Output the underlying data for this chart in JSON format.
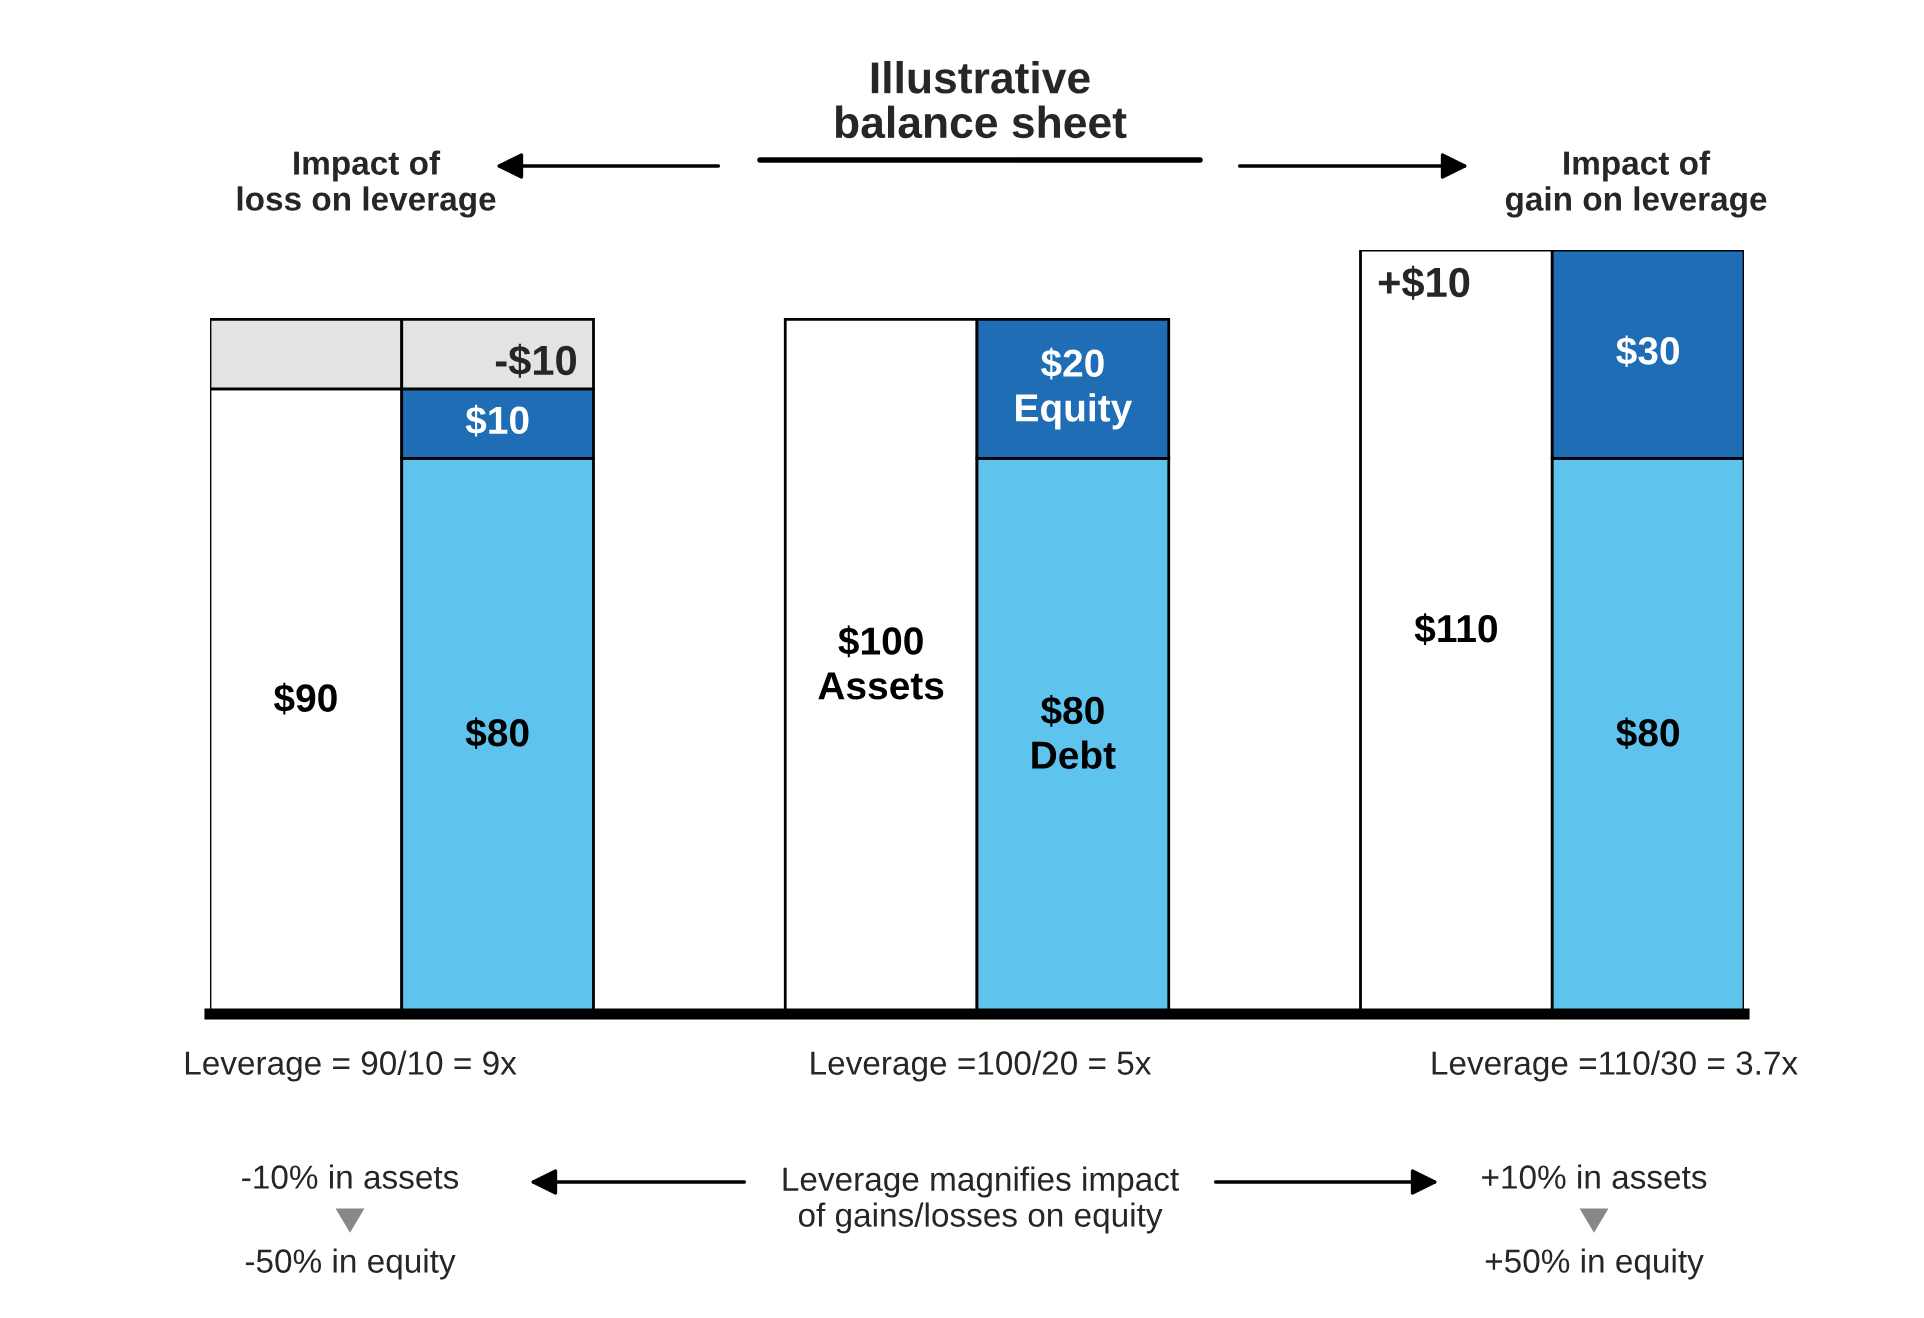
{
  "chart_data": {
    "type": "bar",
    "stacked": true,
    "title": "Illustrative\nbalance sheet",
    "categories": [
      null,
      null,
      null,
      null,
      null,
      null
    ],
    "series": [
      {
        "color": "#ffffff",
        "values": [
          90,
          null,
          100,
          null,
          110,
          null
        ],
        "value_labels": [
          "$90",
          null,
          "$100\nAssets",
          null,
          "$110",
          null
        ]
      },
      {
        "color": "#5ec4ee",
        "values": [
          null,
          80,
          null,
          80,
          null,
          80
        ],
        "value_labels": [
          null,
          "$80",
          null,
          "$80\nDebt",
          null,
          "$80"
        ]
      },
      {
        "color": "#1f6db5",
        "values": [
          null,
          10,
          null,
          20,
          null,
          30
        ],
        "value_labels": [
          null,
          "$10",
          null,
          "$20\nEquity",
          null,
          "$30"
        ]
      },
      {
        "colors": [
          "#e3e3e3",
          "#e3e3e3",
          null,
          null,
          null,
          null
        ],
        "values": [
          10,
          10,
          null,
          null,
          null,
          null
        ]
      }
    ],
    "annotations": [
      "Impact of\nloss on leverage",
      "Impact of\ngain on leverage",
      "Leverage = 90/10 = 9x",
      "Leverage =100/20 = 5x",
      "Leverage =110/30 = 3.7x",
      "-10% in assets",
      "-50% in equity",
      "Leverage magnifies impact\nof gains/losses on equity",
      "+10% in assets",
      "+50% in equity",
      "-$10",
      "+$10"
    ]
  }
}
